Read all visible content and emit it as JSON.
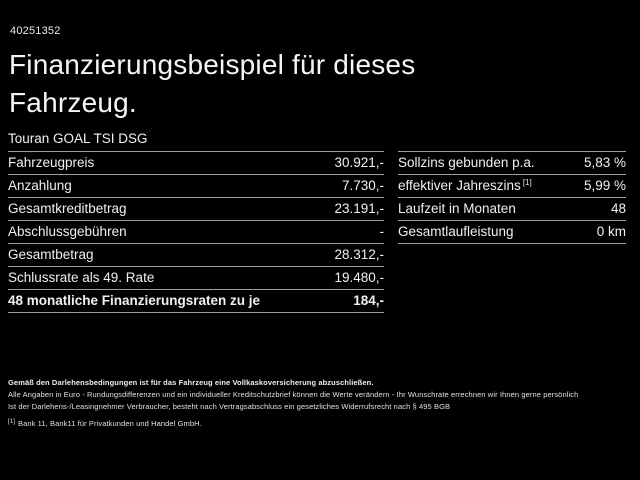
{
  "page": {
    "background_color": "#000000",
    "text_color": "#f0f0f0",
    "divider_color": "#a0a0a0"
  },
  "header": {
    "vehicle_id": "40251352",
    "title_line1": "Finanzierungsbeispiel für dieses",
    "title_line2": "Fahrzeug.",
    "vehicle_model": "Touran GOAL TSI DSG"
  },
  "finance_table": {
    "rows": [
      {
        "label": "Fahrzeugpreis",
        "value": "30.921,-"
      },
      {
        "label": "Anzahlung",
        "value": "7.730,-"
      },
      {
        "label": "Gesamtkreditbetrag",
        "value": "23.191,-"
      },
      {
        "label": "Abschlussgebühren",
        "value": "-"
      },
      {
        "label": "Gesamtbetrag",
        "value": "28.312,-"
      },
      {
        "label": "Schlussrate als 49. Rate",
        "value": "19.480,-"
      },
      {
        "label": "48 monatliche Finanzierungsraten zu je",
        "value": "184,-",
        "bold": true
      }
    ]
  },
  "conditions_table": {
    "rows": [
      {
        "label": "Sollzins gebunden p.a.",
        "value": "5,83 %"
      },
      {
        "label": "effektiver Jahreszins",
        "label_sup": "[1]",
        "value": "5,99 %"
      },
      {
        "label": "Laufzeit in Monaten",
        "value": "48"
      },
      {
        "label": "Gesamtlaufleistung",
        "value": "0 km"
      }
    ]
  },
  "footer": {
    "insurance_note": "Gemäß den Darlehensbedingungen ist für das Fahrzeug eine Vollkaskoversicherung abzuschließen.",
    "disclaimer_line1": "Alle Angaben in Euro - Rundungsdifferenzen und ein individueller Kreditschutzbrief können die Werte verändern - Ihr Wunschrate errechnen wir Ihnen gerne persönlich",
    "disclaimer_line2": "Ist der Darlehens-/Leasingnehmer Verbraucher, besteht nach Vertragsabschluss ein gesetzliches Widerrufsrecht nach § 495 BGB",
    "footnote_marker": "[1]",
    "footnote_text": "Bank 11, Bank11 für Privatkunden und Handel GmbH."
  }
}
